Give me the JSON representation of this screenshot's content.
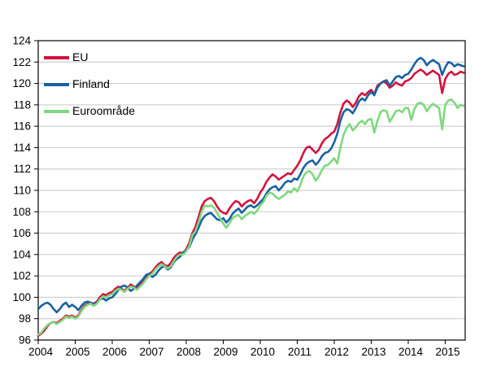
{
  "chart_data": {
    "type": "line",
    "title": "",
    "xlabel": "",
    "ylabel": "",
    "x_unit": "month",
    "x_start": "2004-01",
    "x_tick_years": [
      2004,
      2005,
      2006,
      2007,
      2008,
      2009,
      2010,
      2011,
      2012,
      2013,
      2014,
      2015
    ],
    "ylim": [
      96,
      124
    ],
    "ytick_step": 2,
    "grid": "horizontal",
    "legend_position": "top-left-inside",
    "series": [
      {
        "name": "EU",
        "color": "#d5123e",
        "values": [
          96.4,
          96.6,
          96.9,
          97.3,
          97.6,
          97.7,
          97.6,
          97.8,
          98.0,
          98.3,
          98.2,
          98.3,
          98.1,
          98.3,
          98.8,
          99.2,
          99.4,
          99.5,
          99.4,
          99.6,
          100.0,
          100.3,
          100.2,
          100.4,
          100.5,
          100.8,
          101.0,
          100.8,
          100.6,
          100.9,
          101.2,
          101.0,
          100.8,
          101.2,
          101.5,
          101.9,
          102.2,
          102.4,
          102.8,
          103.1,
          103.3,
          103.0,
          102.9,
          103.2,
          103.7,
          104.0,
          104.2,
          104.1,
          104.5,
          105.1,
          106.0,
          106.6,
          107.5,
          108.5,
          109.0,
          109.2,
          109.3,
          109.0,
          108.5,
          108.1,
          107.9,
          107.8,
          108.3,
          108.7,
          109.0,
          108.9,
          108.5,
          108.8,
          109.0,
          109.1,
          108.8,
          109.2,
          109.8,
          110.2,
          110.8,
          111.2,
          111.5,
          111.3,
          111.0,
          111.2,
          111.4,
          111.6,
          111.5,
          111.9,
          112.3,
          112.8,
          113.5,
          114.0,
          114.1,
          113.8,
          113.5,
          113.8,
          114.4,
          114.8,
          115.0,
          115.3,
          115.5,
          116.2,
          117.3,
          118.1,
          118.4,
          118.2,
          117.8,
          118.2,
          118.8,
          119.1,
          118.9,
          119.2,
          119.4,
          119.0,
          119.8,
          120.0,
          120.2,
          120.0,
          119.6,
          119.8,
          120.1,
          119.9,
          119.8,
          120.2,
          120.3,
          120.5,
          120.9,
          121.1,
          121.3,
          121.1,
          120.8,
          121.0,
          121.2,
          121.0,
          120.8,
          119.1,
          120.4,
          120.9,
          121.1,
          120.8,
          120.9,
          121.1,
          121.0
        ]
      },
      {
        "name": "Finland",
        "color": "#1a62a3",
        "values": [
          98.9,
          99.2,
          99.4,
          99.5,
          99.3,
          98.9,
          98.6,
          98.9,
          99.3,
          99.5,
          99.1,
          99.3,
          99.1,
          98.8,
          99.2,
          99.5,
          99.6,
          99.5,
          99.3,
          99.5,
          99.8,
          99.9,
          99.7,
          99.9,
          100.0,
          100.3,
          100.7,
          101.0,
          101.1,
          100.9,
          100.6,
          100.8,
          101.1,
          101.4,
          101.7,
          102.1,
          102.2,
          101.9,
          102.1,
          102.5,
          102.8,
          102.9,
          102.6,
          102.8,
          103.3,
          103.6,
          103.8,
          104.2,
          104.4,
          104.7,
          105.4,
          105.9,
          106.5,
          107.2,
          107.6,
          107.8,
          107.9,
          107.6,
          107.3,
          107.2,
          107.4,
          107.0,
          107.3,
          107.8,
          108.1,
          108.3,
          107.9,
          108.2,
          108.5,
          108.6,
          108.4,
          108.6,
          108.9,
          109.2,
          109.7,
          110.1,
          110.3,
          110.4,
          110.0,
          110.3,
          110.7,
          110.9,
          110.8,
          111.1,
          111.0,
          111.5,
          112.1,
          112.5,
          112.7,
          112.8,
          112.4,
          112.7,
          113.2,
          113.5,
          113.6,
          113.9,
          114.5,
          115.3,
          116.5,
          117.3,
          117.6,
          117.5,
          117.2,
          117.7,
          118.3,
          118.6,
          118.4,
          118.9,
          119.2,
          118.9,
          119.6,
          120.0,
          120.2,
          120.3,
          119.8,
          120.2,
          120.6,
          120.7,
          120.5,
          120.8,
          120.9,
          121.3,
          121.8,
          122.2,
          122.4,
          122.2,
          121.7,
          122.0,
          122.2,
          122.0,
          121.8,
          120.8,
          121.5,
          122.0,
          121.9,
          121.6,
          121.8,
          121.7,
          121.6
        ]
      },
      {
        "name": "Euroområde",
        "color": "#7fd87f",
        "values": [
          96.5,
          96.7,
          97.1,
          97.4,
          97.6,
          97.7,
          97.5,
          97.7,
          97.9,
          98.2,
          98.1,
          98.2,
          98.0,
          98.2,
          98.7,
          99.1,
          99.3,
          99.4,
          99.2,
          99.4,
          99.8,
          100.1,
          100.0,
          100.2,
          100.3,
          100.6,
          100.8,
          100.7,
          100.5,
          100.8,
          101.0,
          100.9,
          100.7,
          101.0,
          101.3,
          101.7,
          102.0,
          102.2,
          102.6,
          102.9,
          103.1,
          102.9,
          102.7,
          102.9,
          103.4,
          103.8,
          104.0,
          104.0,
          104.3,
          104.8,
          105.8,
          106.2,
          107.0,
          108.0,
          108.6,
          108.5,
          108.6,
          108.4,
          107.9,
          107.4,
          106.9,
          106.5,
          106.9,
          107.4,
          107.6,
          107.7,
          107.3,
          107.6,
          107.8,
          108.0,
          107.8,
          108.1,
          108.6,
          108.9,
          109.5,
          109.8,
          109.7,
          109.4,
          109.2,
          109.4,
          109.6,
          109.9,
          109.8,
          110.2,
          109.9,
          110.5,
          111.3,
          111.7,
          111.8,
          111.5,
          110.9,
          111.3,
          111.9,
          112.3,
          112.4,
          112.7,
          113.0,
          112.5,
          114.0,
          115.2,
          115.8,
          116.2,
          115.6,
          115.9,
          116.3,
          116.5,
          116.2,
          116.6,
          116.7,
          115.4,
          116.5,
          117.3,
          117.5,
          117.4,
          116.4,
          116.9,
          117.4,
          117.5,
          117.3,
          117.7,
          117.7,
          116.6,
          117.6,
          118.1,
          118.2,
          118.0,
          117.4,
          117.8,
          118.1,
          117.9,
          117.7,
          115.7,
          118.0,
          118.4,
          118.5,
          118.2,
          117.7,
          118.0,
          117.9
        ]
      }
    ]
  },
  "colors": {
    "background": "#ffffff",
    "grid": "#c6c6c6",
    "axis": "#000000",
    "text": "#000000"
  }
}
